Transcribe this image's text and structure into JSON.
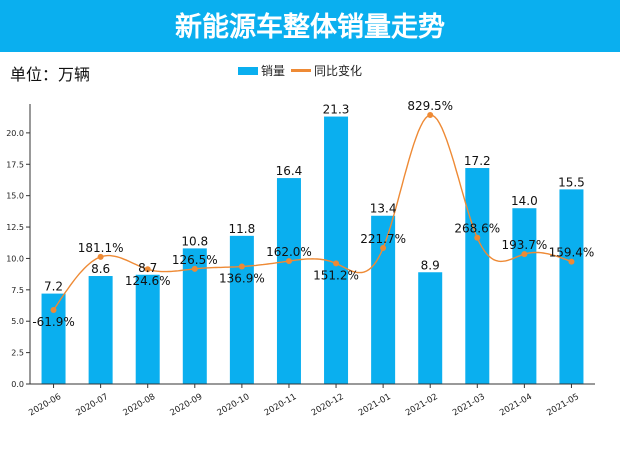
{
  "title": "新能源车整体销量走势",
  "unit_label": "单位：万辆",
  "legend": {
    "bar": "销量",
    "line": "同比变化"
  },
  "colors": {
    "banner": "#0AAFEF",
    "bar": "#0AAFEF",
    "line": "#EE8A35"
  },
  "chart_data": {
    "type": "bar",
    "categories": [
      "2020-06",
      "2020-07",
      "2020-08",
      "2020-09",
      "2020-10",
      "2020-11",
      "2020-12",
      "2021-01",
      "2021-02",
      "2021-03",
      "2021-04",
      "2021-05"
    ],
    "series": [
      {
        "name": "销量",
        "type": "bar",
        "values": [
          7.2,
          8.6,
          8.7,
          10.8,
          11.8,
          16.4,
          21.3,
          13.4,
          8.9,
          17.2,
          14.0,
          15.5
        ],
        "labels": [
          "7.2",
          "8.6",
          "8.7",
          "10.8",
          "11.8",
          "16.4",
          "21.3",
          "13.4",
          "8.9",
          "17.2",
          "14.0",
          "15.5"
        ]
      },
      {
        "name": "同比变化",
        "type": "line",
        "smooth": true,
        "axis": "secondary-hidden",
        "values": [
          -61.9,
          181.1,
          124.6,
          126.5,
          136.9,
          162.0,
          151.2,
          221.7,
          829.5,
          268.6,
          193.7,
          159.4
        ],
        "labels": [
          "-61.9%",
          "181.1%",
          "124.6%",
          "126.5%",
          "136.9%",
          "162.0%",
          "151.2%",
          "221.7%",
          "829.5%",
          "268.6%",
          "193.7%",
          "159.4%"
        ]
      }
    ],
    "yticks": [
      "0.0",
      "2.5",
      "5.0",
      "7.5",
      "10.0",
      "12.5",
      "15.0",
      "17.5",
      "20.0"
    ],
    "ylim": [
      0,
      22.3
    ],
    "y2lim": [
      -400,
      880
    ],
    "grid": false,
    "legend_position": "top-center"
  }
}
